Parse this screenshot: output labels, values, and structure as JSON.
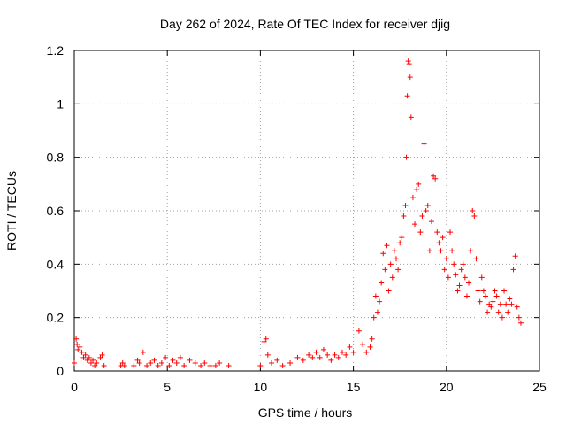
{
  "chart_data": {
    "type": "scatter",
    "title": "Day 262 of 2024, Rate Of TEC Index for receiver djig",
    "xlabel": "GPS time / hours",
    "ylabel": "ROTI / TECUs",
    "xlim": [
      0,
      25
    ],
    "ylim": [
      0,
      1.2
    ],
    "x_ticks": [
      0,
      5,
      10,
      15,
      20,
      25
    ],
    "x_tick_labels": [
      "0",
      "5",
      "10",
      "15",
      "20",
      "25"
    ],
    "y_ticks": [
      0,
      0.2,
      0.4,
      0.6,
      0.8,
      1.0,
      1.2
    ],
    "y_tick_labels": [
      "0",
      "0.2",
      "0.4",
      "0.6",
      "0.8",
      "1",
      "1.2"
    ],
    "grid": true,
    "marker": "+",
    "color": "#ff0000",
    "series": [
      {
        "name": "ROTI",
        "x": [
          0.0,
          0.1,
          0.15,
          0.2,
          0.3,
          0.4,
          0.5,
          0.6,
          0.7,
          0.8,
          0.9,
          1.0,
          1.1,
          1.2,
          1.4,
          1.5,
          1.6,
          2.5,
          2.6,
          2.7,
          3.2,
          3.4,
          3.5,
          3.7,
          3.9,
          4.1,
          4.3,
          4.5,
          4.7,
          4.9,
          5.1,
          5.3,
          5.5,
          5.7,
          5.9,
          6.2,
          6.5,
          6.8,
          7.0,
          7.3,
          7.6,
          7.8,
          8.3,
          10.0,
          10.2,
          10.3,
          10.4,
          10.6,
          10.9,
          11.2,
          11.6,
          12.0,
          12.3,
          12.6,
          12.8,
          13.0,
          13.2,
          13.4,
          13.6,
          13.8,
          14.0,
          14.2,
          14.4,
          14.6,
          14.8,
          15.0,
          15.3,
          15.5,
          15.7,
          15.9,
          16.0,
          16.1,
          16.2,
          16.3,
          16.4,
          16.5,
          16.6,
          16.7,
          16.8,
          16.9,
          17.0,
          17.1,
          17.2,
          17.3,
          17.4,
          17.5,
          17.6,
          17.7,
          17.8,
          17.85,
          17.9,
          17.95,
          18.0,
          18.05,
          18.1,
          18.2,
          18.3,
          18.4,
          18.5,
          18.6,
          18.7,
          18.8,
          18.9,
          19.0,
          19.1,
          19.2,
          19.3,
          19.4,
          19.5,
          19.6,
          19.7,
          19.8,
          19.9,
          20.0,
          20.1,
          20.2,
          20.3,
          20.4,
          20.5,
          20.6,
          20.7,
          20.8,
          20.9,
          21.0,
          21.1,
          21.2,
          21.3,
          21.4,
          21.5,
          21.6,
          21.7,
          21.8,
          21.9,
          22.0,
          22.1,
          22.2,
          22.3,
          22.4,
          22.5,
          22.6,
          22.7,
          22.8,
          22.9,
          23.0,
          23.1,
          23.2,
          23.3,
          23.4,
          23.5,
          23.6,
          23.7,
          23.8,
          23.9,
          24.0
        ],
        "y": [
          0.03,
          0.12,
          0.1,
          0.08,
          0.09,
          0.07,
          0.05,
          0.06,
          0.04,
          0.05,
          0.03,
          0.04,
          0.02,
          0.03,
          0.05,
          0.06,
          0.02,
          0.02,
          0.03,
          0.02,
          0.02,
          0.04,
          0.03,
          0.07,
          0.02,
          0.03,
          0.04,
          0.02,
          0.03,
          0.05,
          0.02,
          0.04,
          0.03,
          0.05,
          0.02,
          0.04,
          0.03,
          0.02,
          0.03,
          0.02,
          0.02,
          0.03,
          0.02,
          0.02,
          0.11,
          0.12,
          0.06,
          0.03,
          0.04,
          0.02,
          0.03,
          0.05,
          0.04,
          0.06,
          0.05,
          0.07,
          0.05,
          0.08,
          0.06,
          0.04,
          0.06,
          0.05,
          0.07,
          0.06,
          0.09,
          0.07,
          0.15,
          0.1,
          0.07,
          0.09,
          0.12,
          0.2,
          0.28,
          0.22,
          0.26,
          0.33,
          0.44,
          0.38,
          0.47,
          0.3,
          0.4,
          0.35,
          0.45,
          0.42,
          0.38,
          0.48,
          0.5,
          0.58,
          0.62,
          0.8,
          1.03,
          1.16,
          1.15,
          1.1,
          0.95,
          0.65,
          0.55,
          0.68,
          0.7,
          0.52,
          0.58,
          0.85,
          0.6,
          0.62,
          0.45,
          0.56,
          0.73,
          0.72,
          0.52,
          0.48,
          0.45,
          0.5,
          0.38,
          0.42,
          0.35,
          0.52,
          0.45,
          0.4,
          0.36,
          0.3,
          0.32,
          0.38,
          0.4,
          0.35,
          0.28,
          0.33,
          0.45,
          0.6,
          0.58,
          0.42,
          0.3,
          0.26,
          0.35,
          0.3,
          0.28,
          0.22,
          0.25,
          0.24,
          0.26,
          0.3,
          0.28,
          0.22,
          0.25,
          0.2,
          0.3,
          0.25,
          0.22,
          0.27,
          0.25,
          0.38,
          0.43,
          0.24,
          0.2,
          0.18
        ]
      }
    ]
  }
}
